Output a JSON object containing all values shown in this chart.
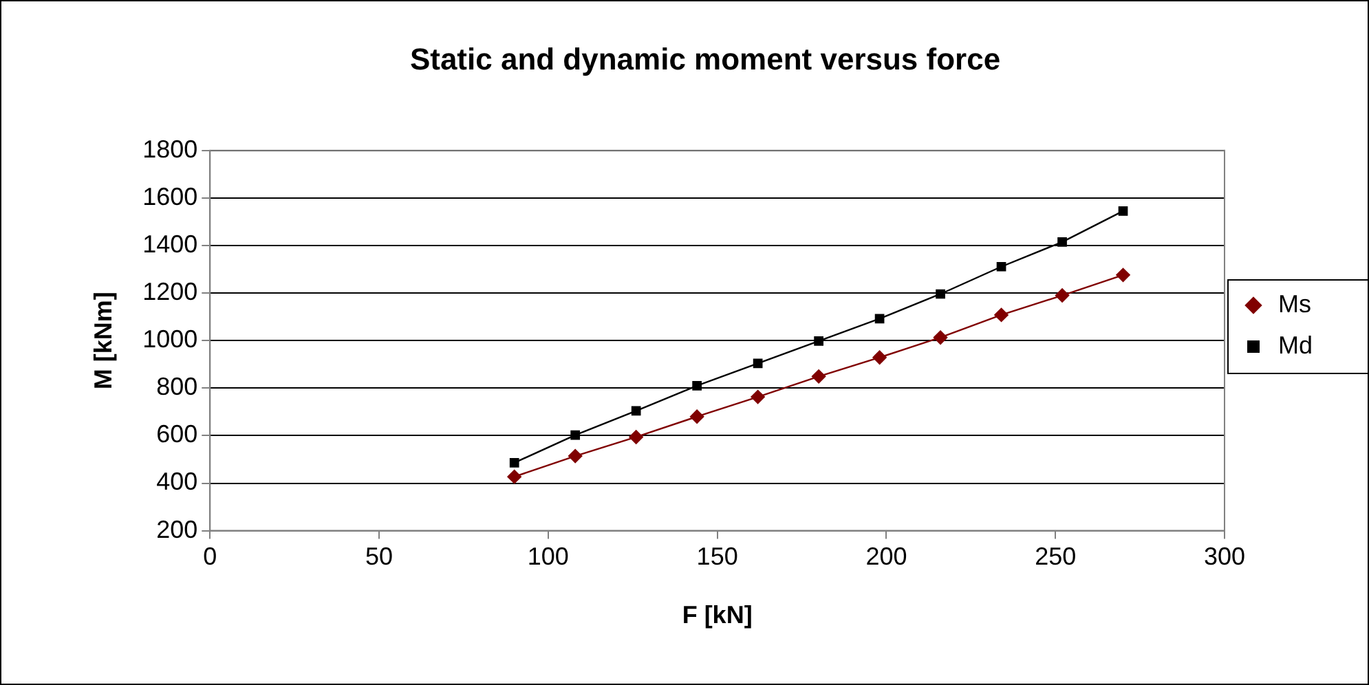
{
  "chart_data": {
    "type": "line",
    "title": "Static and dynamic moment versus force",
    "xlabel": "F [kN]",
    "ylabel": "M [kNm]",
    "x": [
      90,
      108,
      126,
      144,
      162,
      180,
      198,
      216,
      234,
      252,
      270
    ],
    "series": [
      {
        "name": "Ms",
        "color": "#800000",
        "marker": "diamond",
        "values": [
          427,
          514,
          594,
          680,
          763,
          849,
          929,
          1013,
          1108,
          1190,
          1276
        ]
      },
      {
        "name": "Md",
        "color": "#000000",
        "marker": "square",
        "values": [
          486,
          602,
          704,
          810,
          904,
          998,
          1092,
          1196,
          1311,
          1415,
          1545
        ]
      }
    ],
    "xlim": [
      0,
      300
    ],
    "xticks": [
      0,
      50,
      100,
      150,
      200,
      250,
      300
    ],
    "ylim": [
      200,
      1800
    ],
    "yticks": [
      200,
      400,
      600,
      800,
      1000,
      1200,
      1400,
      1600,
      1800
    ],
    "grid": "y",
    "legend": "right",
    "line_style": "solid"
  }
}
